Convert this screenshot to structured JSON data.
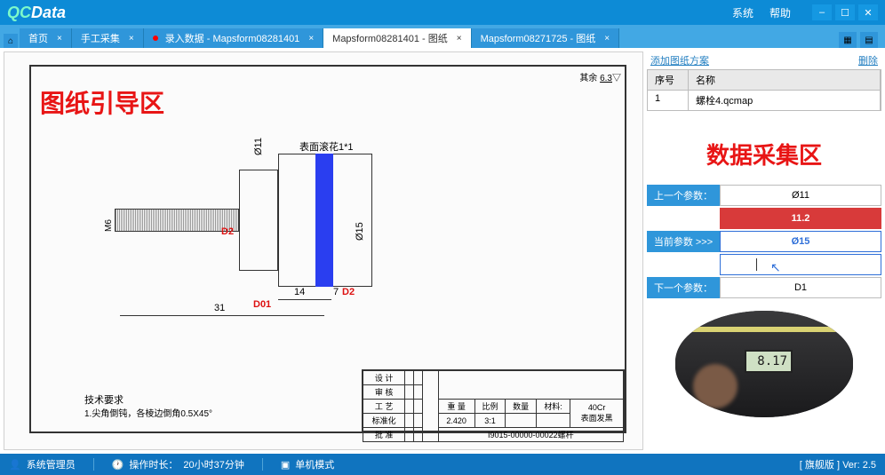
{
  "app": {
    "logo_a": "QC",
    "logo_b": "Data"
  },
  "menu": {
    "system": "系统",
    "help": "帮助"
  },
  "tabs": [
    {
      "label": "首页",
      "active": false,
      "dot": false
    },
    {
      "label": "手工采集",
      "active": false,
      "dot": false
    },
    {
      "label": "录入数据 - Mapsform08281401",
      "active": false,
      "dot": true
    },
    {
      "label": "Mapsform08281401 - 图纸",
      "active": true,
      "dot": false
    },
    {
      "label": "Mapsform08271725 - 图纸",
      "active": false,
      "dot": false
    }
  ],
  "side": {
    "add_link": "添加图纸方案",
    "del_link": "删除",
    "cols": {
      "no": "序号",
      "name": "名称"
    },
    "rows": [
      {
        "no": "1",
        "name": "螺栓4.qcmap"
      }
    ],
    "title": "数据采集区",
    "prev_lbl": "上一个参数：",
    "prev_val": "Ø11",
    "prev_measured": "11.2",
    "curr_lbl": "当前参数  >>>",
    "curr_val": "Ø15",
    "next_lbl": "下一个参数：",
    "next_val": "D1",
    "caliper_reading": "8.17"
  },
  "drawing": {
    "overlay": "图纸引导区",
    "corner": "6.3",
    "corner2": "其余",
    "surf": "表面滚花1*1",
    "phi11": "Ø11",
    "phi15": "Ø15",
    "m6": "M6",
    "d2a": "D2",
    "d2b": "D2",
    "d01": "D01",
    "dim31": "31",
    "dim14": "14",
    "dim7": "7",
    "tech_req": "技术要求",
    "tech_note": "1.尖角倒钝，各棱边倒角0.5X45°",
    "tb": {
      "r1": [
        "设 计",
        "",
        "",
        "",
        "",
        ""
      ],
      "r2": [
        "审 核",
        "",
        "",
        "",
        "",
        ""
      ],
      "r3": [
        "工 艺",
        "",
        "",
        "⊕⊖",
        "重  量",
        "比例",
        "数量",
        "材料:",
        "40Cr"
      ],
      "r4": [
        "标准化",
        "",
        "",
        "",
        "2.420",
        "3:1",
        "",
        "表面发黑",
        ""
      ],
      "r5": [
        "批 准",
        "",
        "",
        "I9015-00000-00022螺杆"
      ]
    }
  },
  "status": {
    "user": "系统管理员",
    "time_lbl": "操作时长：",
    "time": "20小时37分钟",
    "mode": "单机模式",
    "ver": "[ 旗舰版 ] Ver: 2.5"
  },
  "colors": {
    "primary": "#0d8bd6",
    "tab": "#2f96da",
    "red": "#e81515",
    "blueband": "#2a3ef0",
    "status": "#1074bf"
  }
}
